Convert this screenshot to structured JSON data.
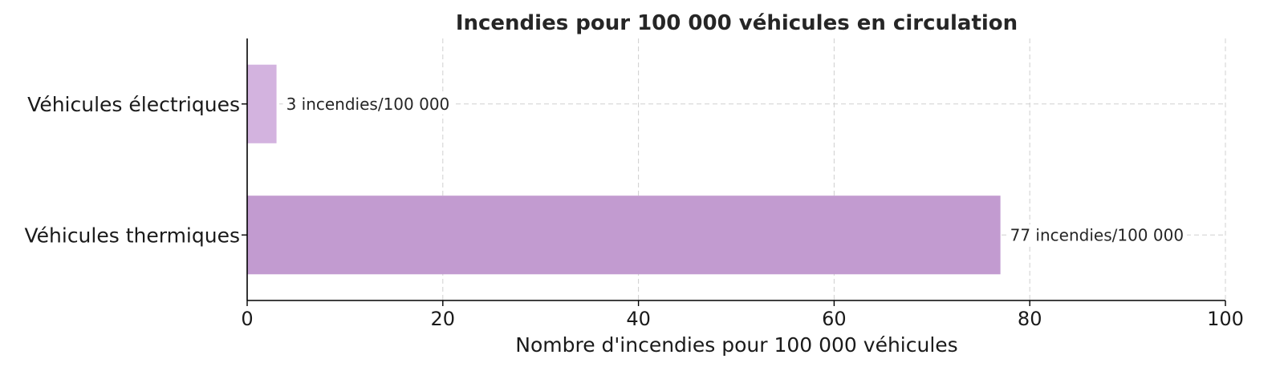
{
  "chart_data": {
    "type": "bar",
    "orientation": "horizontal",
    "title": "Incendies pour 100 000 véhicules en circulation",
    "xlabel": "Nombre d'incendies pour 100 000 véhicules",
    "ylabel": "",
    "categories": [
      "Véhicules électriques",
      "Véhicules thermiques"
    ],
    "values": [
      3,
      77
    ],
    "data_labels": [
      "3 incendies/100 000",
      "77 incendies/100 000"
    ],
    "bar_colors": [
      "#d3b3df",
      "#c29bd0"
    ],
    "xlim": [
      0,
      100
    ],
    "xticks": [
      0,
      20,
      40,
      60,
      80,
      100
    ],
    "grid": true,
    "legend": "none"
  }
}
